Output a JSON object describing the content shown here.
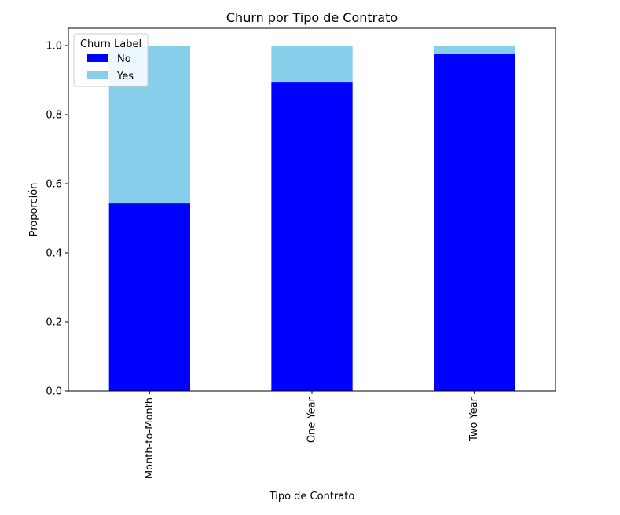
{
  "chart_data": {
    "type": "bar",
    "stacked": true,
    "title": "Churn por Tipo de Contrato",
    "xlabel": "Tipo de Contrato",
    "ylabel": "Proporción",
    "categories": [
      "Month-to-Month",
      "One Year",
      "Two Year"
    ],
    "series": [
      {
        "name": "No",
        "color": "#0000ff",
        "values": [
          0.543,
          0.893,
          0.975
        ]
      },
      {
        "name": "Yes",
        "color": "#87ceeb",
        "values": [
          0.457,
          0.107,
          0.025
        ]
      }
    ],
    "ylim": [
      0,
      1.05
    ],
    "yticks": [
      0.0,
      0.2,
      0.4,
      0.6,
      0.8,
      1.0
    ],
    "ytick_labels": [
      "0.0",
      "0.2",
      "0.4",
      "0.6",
      "0.8",
      "1.0"
    ],
    "legend": {
      "title": "Churn Label",
      "position": "top-left"
    },
    "grid": false,
    "xtick_rotation": "vertical"
  }
}
